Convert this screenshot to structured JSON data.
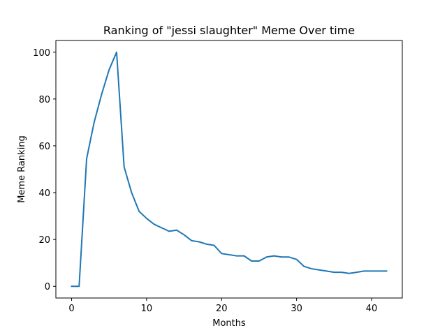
{
  "chart_data": {
    "type": "line",
    "title": "Ranking of \"jessi slaughter\" Meme Over time",
    "xlabel": "Months",
    "ylabel": "Meme Ranking",
    "xlim": [
      -2.1,
      44.1
    ],
    "ylim": [
      -5,
      105
    ],
    "xticks": [
      0,
      10,
      20,
      30,
      40
    ],
    "yticks": [
      0,
      20,
      40,
      60,
      80,
      100
    ],
    "grid": false,
    "legend": "none",
    "series": [
      {
        "color": "#1f77b4",
        "x": [
          0,
          1,
          2,
          3,
          4,
          5,
          6,
          7,
          8,
          9,
          10,
          11,
          12,
          13,
          14,
          15,
          16,
          17,
          18,
          19,
          20,
          21,
          22,
          23,
          24,
          25,
          26,
          27,
          28,
          29,
          30,
          31,
          32,
          33,
          34,
          35,
          36,
          37,
          38,
          39,
          40,
          41,
          42
        ],
        "values": [
          0,
          0,
          54.5,
          70,
          82,
          92.5,
          100,
          51,
          40,
          32,
          29,
          26.5,
          25,
          23.5,
          24,
          22,
          19.5,
          19,
          18,
          17.5,
          14,
          13.5,
          13,
          13,
          10.8,
          10.8,
          12.5,
          13,
          12.5,
          12.5,
          11.5,
          8.5,
          7.5,
          7,
          6.5,
          6,
          6,
          5.5,
          6,
          6.5,
          6.5,
          6.5,
          6.5
        ]
      }
    ]
  }
}
